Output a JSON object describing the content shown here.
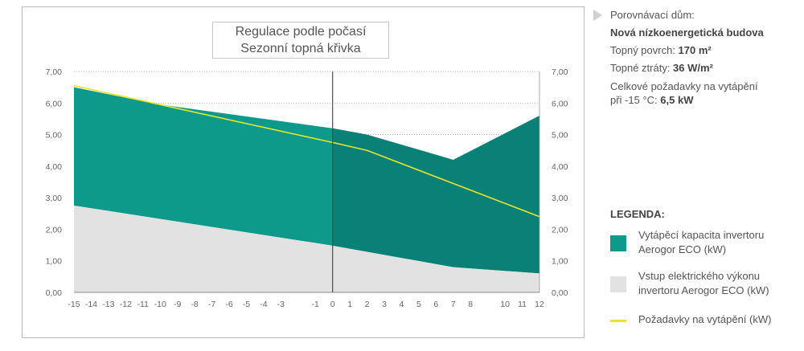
{
  "chart_data": {
    "type": "area",
    "title_lines": [
      "Regulace podle počasí",
      "Sezonní topná křivka"
    ],
    "x": [
      -15,
      -14,
      -13,
      -12,
      -11,
      -10,
      -9,
      -8,
      -7,
      -6,
      -5,
      -4,
      -3,
      -1,
      0,
      1,
      2,
      3,
      4,
      5,
      6,
      7,
      8,
      10,
      11,
      12
    ],
    "x_labels": [
      "-15",
      "-14",
      "-13",
      "-12",
      "-11",
      "-10",
      "-9",
      "-8",
      "-7",
      "-6",
      "-5",
      "-4",
      "-3",
      "-1",
      "0",
      "1",
      "2",
      "3",
      "4",
      "5",
      "6",
      "7",
      "8",
      "10",
      "11",
      "12"
    ],
    "y_labels": [
      "0,00",
      "1,00",
      "2,00",
      "3,00",
      "4,00",
      "5,00",
      "6,00",
      "7,00"
    ],
    "ylim": [
      0,
      7
    ],
    "grid": "horizontal-dotted",
    "series": [
      {
        "name": "Vytápěcí kapacita invertoru Aerogor ECO (kW)",
        "kind": "area",
        "color": "#0e9a8a",
        "color_dark": "#0a8176",
        "points": [
          [
            -15,
            6.5
          ],
          [
            -10,
            5.95
          ],
          [
            0,
            5.2
          ],
          [
            2,
            5.0
          ],
          [
            7,
            4.2
          ],
          [
            12,
            5.6
          ]
        ]
      },
      {
        "name": "Vstup elektrického výkonu invertoru Aerogor ECO (kW)",
        "kind": "area",
        "color": "#e2e2e3",
        "points": [
          [
            -15,
            2.75
          ],
          [
            0,
            1.48
          ],
          [
            7,
            0.8
          ],
          [
            12,
            0.6
          ]
        ]
      },
      {
        "name": "Požadavky na vytápění (kW)",
        "kind": "line",
        "color": "#e6e62a",
        "points": [
          [
            -15,
            6.55
          ],
          [
            0,
            4.75
          ],
          [
            2,
            4.5
          ],
          [
            12,
            2.4
          ]
        ]
      }
    ]
  },
  "info": {
    "label": "Porovnávací dům:",
    "house": "Nová nízkoenergetická budova",
    "area_prefix": "Topný povrch: ",
    "area_value": "170 m²",
    "loss_prefix": "Topné ztráty: ",
    "loss_value": "36 W/m²",
    "demand_line1": "Celkové požadavky na vytápění",
    "demand_prefix": "při -15 °C: ",
    "demand_value": "6,5 kW"
  },
  "legend": {
    "title": "LEGENDA:",
    "items": [
      {
        "line1": "Vytápěcí kapacita invertoru",
        "line2": "Aerogor ECO (kW)",
        "color": "#0e9a8a"
      },
      {
        "line1": "Vstup elektrického výkonu",
        "line2": "invertoru Aerogor ECO (kW)",
        "color": "#e2e2e3"
      },
      {
        "line1": "Požadavky na vytápění (kW)",
        "line2": "",
        "color": "#e6e62a"
      }
    ]
  }
}
